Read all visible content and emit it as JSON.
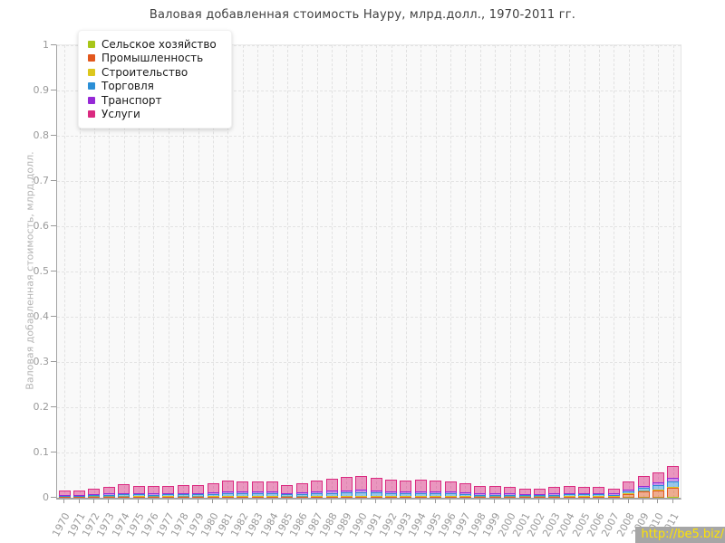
{
  "title": "Валовая добавленная стоимость Науру, млрд.долл., 1970-2011 гг.",
  "watermark": "http://be5.biz/",
  "chart_data": {
    "type": "bar",
    "stacked": true,
    "title": "Валовая добавленная стоимость Науру, млрд.долл., 1970-2011 гг.",
    "xlabel": "",
    "ylabel": "Валовая добавленная стоимость, млрд.долл.",
    "ylim": [
      0,
      1
    ],
    "ytick_step": 0.1,
    "grid": true,
    "legend_position": "top-left",
    "categories": [
      "1970",
      "1971",
      "1972",
      "1973",
      "1974",
      "1975",
      "1976",
      "1977",
      "1978",
      "1979",
      "1980",
      "1981",
      "1982",
      "1983",
      "1984",
      "1985",
      "1986",
      "1987",
      "1988",
      "1989",
      "1990",
      "1991",
      "1992",
      "1993",
      "1994",
      "1995",
      "1996",
      "1997",
      "1998",
      "1999",
      "2000",
      "2001",
      "2002",
      "2003",
      "2004",
      "2005",
      "2006",
      "2007",
      "2008",
      "2009",
      "2010",
      "2011"
    ],
    "series": [
      {
        "name": "Сельское хозяйство",
        "color": "#a8c619",
        "values": [
          0.001,
          0.001,
          0.001,
          0.001,
          0.001,
          0.001,
          0.001,
          0.001,
          0.001,
          0.001,
          0.001,
          0.001,
          0.001,
          0.001,
          0.001,
          0.001,
          0.001,
          0.001,
          0.001,
          0.001,
          0.001,
          0.001,
          0.001,
          0.001,
          0.001,
          0.001,
          0.001,
          0.001,
          0.001,
          0.001,
          0.001,
          0.001,
          0.001,
          0.001,
          0.001,
          0.001,
          0.001,
          0.001,
          0.001,
          0.001,
          0.001,
          0.002
        ]
      },
      {
        "name": "Промышленность",
        "color": "#e2571d",
        "values": [
          0.0005,
          0.0005,
          0.0005,
          0.001,
          0.001,
          0.002,
          0.001,
          0.002,
          0.001,
          0.001,
          0.002,
          0.002,
          0.001,
          0.001,
          0.001,
          0.001,
          0.001,
          0.001,
          0.001,
          0.001,
          0.001,
          0.001,
          0.001,
          0.001,
          0.001,
          0.001,
          0.001,
          0.001,
          0.001,
          0.001,
          0.001,
          0.001,
          0.001,
          0.001,
          0.002,
          0.002,
          0.002,
          0.002,
          0.008,
          0.013,
          0.016,
          0.02
        ]
      },
      {
        "name": "Строительство",
        "color": "#dcc71d",
        "values": [
          0.0005,
          0.0005,
          0.001,
          0.001,
          0.001,
          0.001,
          0.001,
          0.001,
          0.001,
          0.001,
          0.001,
          0.001,
          0.002,
          0.002,
          0.002,
          0.001,
          0.001,
          0.002,
          0.002,
          0.002,
          0.003,
          0.003,
          0.002,
          0.002,
          0.002,
          0.002,
          0.002,
          0.002,
          0.001,
          0.001,
          0.001,
          0.001,
          0.001,
          0.001,
          0.001,
          0.001,
          0.001,
          0.001,
          0.001,
          0.001,
          0.002,
          0.002
        ]
      },
      {
        "name": "Торговля",
        "color": "#2b8fd6",
        "values": [
          0.003,
          0.003,
          0.004,
          0.004,
          0.005,
          0.004,
          0.004,
          0.004,
          0.005,
          0.005,
          0.005,
          0.006,
          0.006,
          0.006,
          0.006,
          0.005,
          0.005,
          0.006,
          0.007,
          0.008,
          0.008,
          0.007,
          0.007,
          0.006,
          0.007,
          0.006,
          0.006,
          0.005,
          0.004,
          0.004,
          0.004,
          0.003,
          0.003,
          0.004,
          0.004,
          0.004,
          0.004,
          0.003,
          0.005,
          0.007,
          0.009,
          0.012
        ]
      },
      {
        "name": "Транспорт",
        "color": "#9629d6",
        "values": [
          0.002,
          0.002,
          0.002,
          0.003,
          0.003,
          0.003,
          0.003,
          0.003,
          0.003,
          0.003,
          0.004,
          0.004,
          0.004,
          0.004,
          0.004,
          0.003,
          0.004,
          0.004,
          0.005,
          0.005,
          0.005,
          0.005,
          0.004,
          0.004,
          0.004,
          0.004,
          0.004,
          0.004,
          0.003,
          0.003,
          0.003,
          0.003,
          0.003,
          0.003,
          0.003,
          0.003,
          0.003,
          0.003,
          0.004,
          0.005,
          0.006,
          0.008
        ]
      },
      {
        "name": "Услуги",
        "color": "#da2a80",
        "values": [
          0.009,
          0.009,
          0.012,
          0.014,
          0.019,
          0.016,
          0.017,
          0.015,
          0.018,
          0.018,
          0.02,
          0.024,
          0.022,
          0.022,
          0.022,
          0.018,
          0.02,
          0.024,
          0.027,
          0.029,
          0.031,
          0.028,
          0.026,
          0.025,
          0.026,
          0.025,
          0.023,
          0.019,
          0.017,
          0.016,
          0.014,
          0.012,
          0.012,
          0.014,
          0.016,
          0.013,
          0.013,
          0.011,
          0.017,
          0.021,
          0.023,
          0.026
        ]
      }
    ]
  }
}
